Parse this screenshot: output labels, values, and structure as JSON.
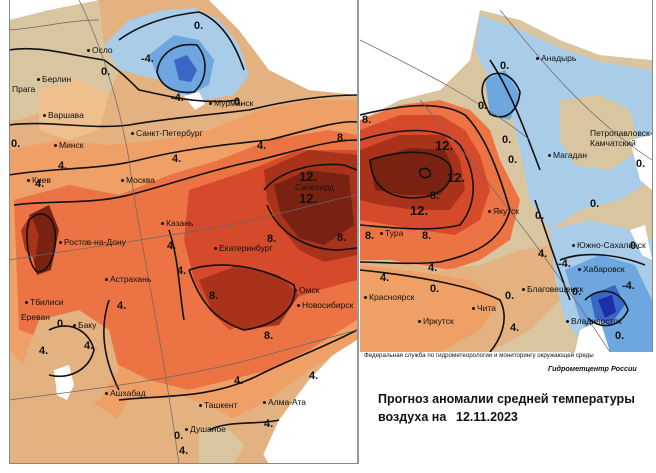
{
  "colors": {
    "ocean": "#ffffff",
    "blue_dark": "#3a66c6",
    "blue_mid": "#6ea7df",
    "blue_light": "#a9cce9",
    "neutral": "#d9c59f",
    "tan": "#e3b280",
    "orange_light": "#efa067",
    "orange": "#ec7444",
    "red": "#d54a2a",
    "red_dark": "#a8331a",
    "brown": "#7a2212"
  },
  "left_map": {
    "cities": [
      "Осло",
      "Берлин",
      "Прага",
      "Варшава",
      "Мурманск",
      "Санкт-Петербург",
      "Минск",
      "Киев",
      "Москва",
      "Салехард",
      "Казань",
      "Ростов-на-Дону",
      "Екатеринбург",
      "Астрахань",
      "Омск",
      "Новосибирск",
      "Тбилиси",
      "Ереван",
      "Баку",
      "Ашхабад",
      "Ташкент",
      "Алма-Ата",
      "Душанбе"
    ],
    "isolines": [
      "0.",
      "-4.",
      "0.",
      "-4.",
      "0.",
      "4.",
      "0.",
      "4.",
      "4.",
      "8.",
      "12.",
      "12.",
      "4.",
      "8.",
      "4.",
      "8.",
      "4.",
      "8.",
      "8.",
      "4.",
      "0.",
      "4.",
      "4.",
      "4.",
      "4.",
      "0.",
      "4.",
      "4."
    ]
  },
  "right_map": {
    "cities": [
      "Анадырь",
      "Петропавловск-Камчатский",
      "Магадан",
      "Якутск",
      "Тура",
      "Южно-Сахалинск",
      "Хабаровск",
      "Благовещенск",
      "Красноярск",
      "Чита",
      "Иркутск",
      "Владивосток"
    ],
    "isolines": [
      "0.",
      "0.",
      "0.",
      "0.",
      "8.",
      "12.",
      "12.",
      "8.",
      "12.",
      "8.",
      "4.",
      "0.",
      "8.",
      "4.",
      "0.",
      "0.",
      "4.",
      "0.",
      "-4.",
      "-4.",
      "0.",
      "0.",
      "0.",
      "4.",
      "0."
    ]
  },
  "credits": {
    "agency": "Федеральная служба по гидрометеорологии и мониторингу окружающей среды",
    "center": "Гидрометцентр России"
  },
  "title": {
    "line1": "Прогноз аномалии средней температуры",
    "line2_prefix": "воздуха на",
    "date": "12.11.2023"
  }
}
